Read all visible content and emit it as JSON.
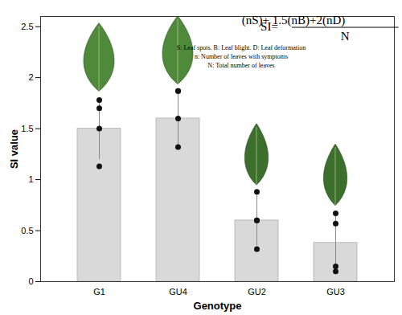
{
  "chart_data": {
    "type": "bar",
    "x_label": "Genotype",
    "y_label": "SI value",
    "categories": [
      "G1",
      "GU4",
      "GU2",
      "GU3"
    ],
    "values": [
      1.5,
      1.6,
      0.6,
      0.38
    ],
    "errors": [
      0.3,
      0.27,
      0.25,
      0.3
    ],
    "points": [
      [
        1.78,
        1.7,
        1.5,
        1.13
      ],
      [
        1.87,
        1.87,
        1.6,
        1.32
      ],
      [
        0.88,
        0.6,
        0.6,
        0.32
      ],
      [
        0.67,
        0.57,
        0.15,
        0.1
      ]
    ],
    "color": "#d9d9d9",
    "ylim": [
      0,
      2.6
    ],
    "yticks": [
      0,
      0.5,
      1,
      1.5,
      2,
      2.5
    ],
    "grid": false,
    "annotations": {
      "formula_left": "SI=",
      "formula_numerator": "(nS)+ 1.5(nB)+2(nD)",
      "formula_denominator": "N",
      "notes": [
        "S: Leaf spots. B: Leaf blight. D: Leaf deformation",
        "n: Number of leaves with symptoms",
        "N: Total number of leaves"
      ]
    }
  }
}
